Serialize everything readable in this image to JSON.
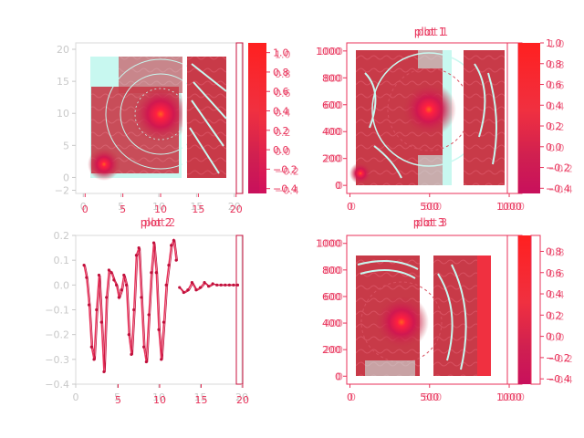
{
  "chart_data": [
    {
      "panel": "top-left",
      "type": "heatmap",
      "title": "",
      "x_ticks_grey": [
        "0",
        "5",
        "10",
        "15",
        "20"
      ],
      "x_ticks_red": [
        "0",
        "5",
        "10",
        "15",
        "20"
      ],
      "y_ticks": [
        "−2",
        "0",
        "5",
        "10",
        "15",
        "20"
      ],
      "y_values": [
        -2,
        0,
        5,
        10,
        15,
        20
      ],
      "xlim": [
        -1,
        21
      ],
      "ylim": [
        -2.5,
        21
      ],
      "colorbar_ticks_a": [
        "1.0",
        "0.8",
        "0.6",
        "0.4",
        "0.2",
        "0.0",
        "−0.2",
        "−0.4"
      ],
      "colorbar_ticks_b": [
        "1.0",
        "0.8",
        "0.6",
        "0.4",
        "0.2",
        "0.0",
        "−0.2",
        "−0.4"
      ],
      "colorbar_range": [
        -0.45,
        1.1
      ],
      "centers": [
        {
          "x": 2,
          "y": 1.5
        },
        {
          "x": 10,
          "y": 10
        }
      ],
      "colors": {
        "background": "#c8f8f0",
        "low": "#c0103c",
        "mid": "#d04050",
        "high": "#ff6020"
      }
    },
    {
      "panel": "top-right",
      "type": "heatmap",
      "title_a": "plot 1",
      "title_b": "plot 1",
      "x_ticks": [
        "0",
        "500",
        "1000"
      ],
      "y_ticks": [
        "0",
        "200",
        "400",
        "600",
        "800",
        "1000"
      ],
      "y_values": [
        0,
        200,
        400,
        600,
        800,
        1000
      ],
      "xlim": [
        -20,
        1080
      ],
      "ylim": [
        -60,
        1060
      ],
      "colorbar_ticks_a": [
        "1.0",
        "0.8",
        "0.6",
        "0.4",
        "0.2",
        "0.0",
        "−0.2",
        "−0.4"
      ],
      "colorbar_ticks_b": [
        "1.0",
        "0.8",
        "0.6",
        "0.4",
        "0.2",
        "0.0",
        "−0.2",
        "−0.4"
      ],
      "colorbar_range": [
        -0.45,
        1.0
      ],
      "centers": [
        {
          "x": 480,
          "y": 540
        }
      ],
      "colors": {
        "background": "#c8f8f0",
        "low": "#c0103c",
        "mid": "#c83a48",
        "high": "#ff6020"
      }
    },
    {
      "panel": "bottom-left",
      "type": "line",
      "title_a": "plot 2",
      "title_b": "plot 2",
      "x_ticks_grey": [
        "0",
        "5",
        "10",
        "15",
        "20"
      ],
      "x_ticks_red": [
        "5",
        "10",
        "15",
        "20"
      ],
      "y_ticks": [
        "0.2",
        "0.1",
        "0.0",
        "−0.1",
        "−0.2",
        "−0.3",
        "−0.4"
      ],
      "y_values": [
        0.2,
        0.1,
        0.0,
        -0.1,
        -0.2,
        -0.3,
        -0.4
      ],
      "xlim": [
        0,
        20
      ],
      "ylim": [
        -0.4,
        0.2
      ],
      "series": [
        {
          "x": [
            1.0,
            1.3,
            1.6,
            1.9,
            2.2,
            2.5,
            2.8,
            3.1,
            3.4,
            3.7,
            4.0,
            4.3,
            4.6,
            4.9,
            5.2,
            5.5,
            5.8,
            6.1,
            6.4,
            6.7,
            7.0,
            7.3,
            7.6,
            7.9,
            8.2,
            8.5,
            8.8,
            9.1,
            9.4,
            9.7,
            10.0,
            10.3,
            10.6,
            10.9,
            11.2,
            11.5,
            11.8,
            12.1
          ],
          "y": [
            0.08,
            0.03,
            -0.08,
            -0.25,
            -0.3,
            -0.1,
            0.04,
            -0.15,
            -0.35,
            -0.05,
            0.06,
            0.05,
            0.02,
            0.0,
            -0.05,
            -0.02,
            0.04,
            0.0,
            -0.2,
            -0.28,
            -0.1,
            0.12,
            0.15,
            -0.05,
            -0.25,
            -0.31,
            -0.12,
            0.05,
            0.17,
            0.05,
            -0.18,
            -0.3,
            -0.15,
            0.0,
            0.08,
            0.16,
            0.18,
            0.1
          ]
        },
        {
          "x": [
            12.5,
            13.0,
            13.5,
            14.0,
            14.5,
            15.0,
            15.5,
            16.0,
            16.5,
            17.0,
            17.5,
            18.0,
            18.5,
            19.0,
            19.5
          ],
          "y": [
            -0.01,
            -0.03,
            -0.02,
            0.01,
            -0.02,
            -0.01,
            0.01,
            -0.005,
            0.005,
            0.0,
            0.0,
            0.0,
            0.0,
            0.0,
            0.0
          ]
        }
      ],
      "colors": {
        "line": "#e8325a",
        "marker": "#c0103c"
      }
    },
    {
      "panel": "bottom-right",
      "type": "heatmap",
      "title_a": "plot 3",
      "title_b": "plot 3",
      "x_ticks": [
        "0",
        "500",
        "1000"
      ],
      "y_ticks": [
        "0",
        "200",
        "400",
        "600",
        "800",
        "1000"
      ],
      "y_values": [
        0,
        200,
        400,
        600,
        800,
        1000
      ],
      "xlim": [
        -20,
        1080
      ],
      "ylim": [
        -60,
        1060
      ],
      "colorbar_ticks_a": [
        "0.8",
        "0.6",
        "0.4",
        "0.2",
        "0.0",
        "−0.2",
        "−0.4"
      ],
      "colorbar_ticks_b": [
        "0.8",
        "0.6",
        "0.4",
        "0.2",
        "0.0",
        "−0.2",
        "−0.4"
      ],
      "colorbar_range": [
        -0.45,
        0.95
      ],
      "centers": [
        {
          "x": 330,
          "y": 380
        }
      ],
      "colors": {
        "background": "#c8f8f0",
        "low": "#c0103c",
        "mid": "#c83a48",
        "high": "#ff6020"
      }
    }
  ]
}
